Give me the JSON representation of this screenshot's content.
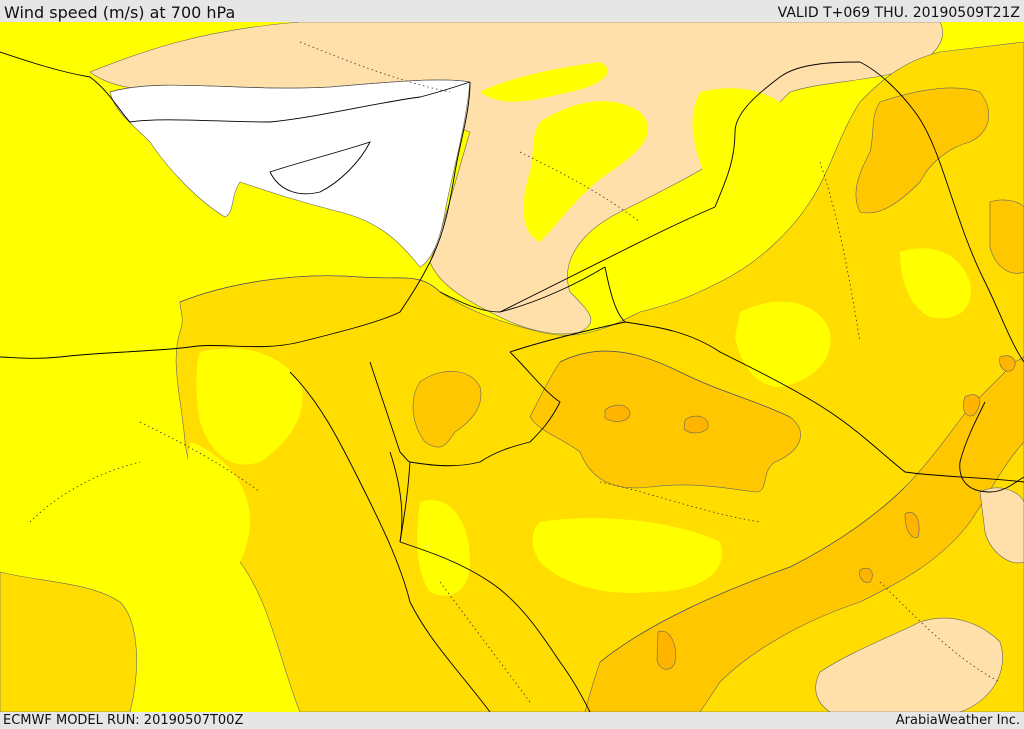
{
  "header": {
    "title": "Wind speed (m/s) at 700 hPa",
    "valid_time": "VALID T+069 THU. 20190509T21Z"
  },
  "footer": {
    "model_run": "ECMWF MODEL RUN: 20190507T00Z",
    "credit": "ArabiaWeather Inc."
  },
  "map": {
    "palette": {
      "band_0_5": "#ffffff",
      "band_5_10": "#ffe0aa",
      "band_10_15": "#ffff00",
      "band_15_20": "#ffdd00",
      "band_20_25": "#ffc700",
      "band_25_30": "#ffb400",
      "band_30_35": "#ff9a00",
      "coastline": "#000000",
      "border": "#000000"
    }
  }
}
